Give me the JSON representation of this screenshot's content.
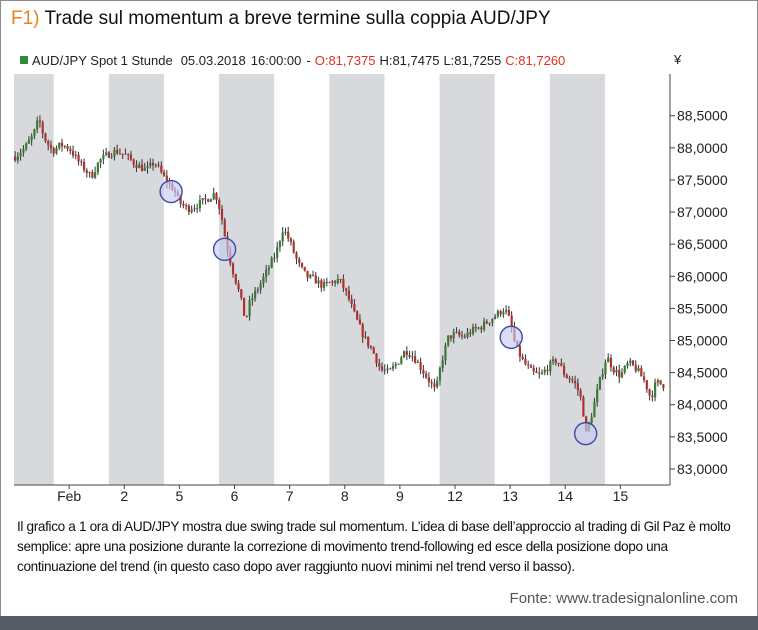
{
  "figure": {
    "number": "F1)",
    "title": "Trade sul momentum a breve termine sulla coppia AUD/JPY",
    "caption": "Il grafico a 1 ora di AUD/JPY mostra due swing trade sul momentum. L’idea di base dell’approccio al trading di Gil Paz è molto semplice: apre una posizione durante la correzione di movimento trend-following ed esce della posizione dopo una continuazione del trend (in questo caso dopo aver raggiunto nuovi minimi nel trend verso il basso).",
    "source": "Fonte: www.tradesignalonline.com"
  },
  "colors": {
    "shade": "#d7d9dd",
    "up": "#3b7a36",
    "down": "#b0302f",
    "wick": "#333333",
    "marker_fill": "#c7cbef",
    "marker_stroke": "#3f4aa8",
    "ohlc_open_close": "#e03020",
    "legend_square": "#2e8b3a",
    "bottom_bar": "#555c66"
  },
  "chart_data": {
    "type": "candlestick",
    "legend": {
      "symbol": "AUD/JPY Spot 1 Stunde",
      "date": "05.03.2018",
      "time": "16:00:00",
      "separator": "-",
      "open_label": "O:",
      "open": "81,7375",
      "high_label": "H:",
      "high": "81,7475",
      "low_label": "L:",
      "low": "81,7255",
      "close_label": "C:",
      "close": "81,7260"
    },
    "currency": "¥",
    "y_ticks": [
      "88,5000",
      "88,0000",
      "87,5000",
      "87,0000",
      "86,5000",
      "86,0000",
      "85,5000",
      "85,0000",
      "84,5000",
      "84,0000",
      "83,5000",
      "83,0000"
    ],
    "y_tick_values": [
      88.5,
      88.0,
      87.5,
      87.0,
      86.5,
      86.0,
      85.5,
      85.0,
      84.5,
      84.0,
      83.5,
      83.0
    ],
    "ylim": [
      82.75,
      89.15
    ],
    "x_ticks": [
      "Feb",
      "2",
      "5",
      "6",
      "7",
      "8",
      "9",
      "12",
      "13",
      "14",
      "15"
    ],
    "x_tick_days": [
      1,
      2,
      3,
      4,
      5,
      6,
      7,
      8,
      9,
      10,
      11
    ],
    "xlim": [
      0.0,
      11.9
    ],
    "shaded_day_spans": [
      [
        0.0,
        0.72
      ],
      [
        1.72,
        2.72
      ],
      [
        3.72,
        4.72
      ],
      [
        5.72,
        6.72
      ],
      [
        7.72,
        8.72
      ],
      [
        9.72,
        10.72
      ]
    ],
    "path_points": [
      [
        0.0,
        87.85
      ],
      [
        0.2,
        88.0
      ],
      [
        0.35,
        88.2
      ],
      [
        0.45,
        88.45
      ],
      [
        0.55,
        88.15
      ],
      [
        0.7,
        87.95
      ],
      [
        0.85,
        88.05
      ],
      [
        1.0,
        88.0
      ],
      [
        1.2,
        87.75
      ],
      [
        1.4,
        87.55
      ],
      [
        1.55,
        87.8
      ],
      [
        1.7,
        87.9
      ],
      [
        1.85,
        87.95
      ],
      [
        2.0,
        87.9
      ],
      [
        2.2,
        87.75
      ],
      [
        2.4,
        87.65
      ],
      [
        2.55,
        87.78
      ],
      [
        2.75,
        87.5
      ],
      [
        2.9,
        87.35
      ],
      [
        3.0,
        87.15
      ],
      [
        3.15,
        87.05
      ],
      [
        3.3,
        87.1
      ],
      [
        3.5,
        87.2
      ],
      [
        3.65,
        87.3
      ],
      [
        3.75,
        87.0
      ],
      [
        3.85,
        86.5
      ],
      [
        3.95,
        86.15
      ],
      [
        4.1,
        85.7
      ],
      [
        4.2,
        85.3
      ],
      [
        4.28,
        85.6
      ],
      [
        4.45,
        85.85
      ],
      [
        4.6,
        86.1
      ],
      [
        4.75,
        86.35
      ],
      [
        4.88,
        86.75
      ],
      [
        5.0,
        86.55
      ],
      [
        5.15,
        86.2
      ],
      [
        5.3,
        86.0
      ],
      [
        5.45,
        85.95
      ],
      [
        5.6,
        85.85
      ],
      [
        5.75,
        85.9
      ],
      [
        5.9,
        85.95
      ],
      [
        6.05,
        85.7
      ],
      [
        6.2,
        85.35
      ],
      [
        6.35,
        85.05
      ],
      [
        6.5,
        84.85
      ],
      [
        6.65,
        84.55
      ],
      [
        6.8,
        84.5
      ],
      [
        6.95,
        84.65
      ],
      [
        7.1,
        84.85
      ],
      [
        7.25,
        84.75
      ],
      [
        7.4,
        84.55
      ],
      [
        7.55,
        84.35
      ],
      [
        7.65,
        84.2
      ],
      [
        7.75,
        84.65
      ],
      [
        7.88,
        85.05
      ],
      [
        8.0,
        85.1
      ],
      [
        8.15,
        85.05
      ],
      [
        8.3,
        85.15
      ],
      [
        8.45,
        85.2
      ],
      [
        8.6,
        85.3
      ],
      [
        8.75,
        85.4
      ],
      [
        8.9,
        85.5
      ],
      [
        9.0,
        85.3
      ],
      [
        9.1,
        84.9
      ],
      [
        9.25,
        84.65
      ],
      [
        9.4,
        84.5
      ],
      [
        9.55,
        84.45
      ],
      [
        9.7,
        84.6
      ],
      [
        9.85,
        84.7
      ],
      [
        10.0,
        84.45
      ],
      [
        10.1,
        84.4
      ],
      [
        10.2,
        84.3
      ],
      [
        10.3,
        84.05
      ],
      [
        10.38,
        83.55
      ],
      [
        10.48,
        83.85
      ],
      [
        10.62,
        84.35
      ],
      [
        10.75,
        84.75
      ],
      [
        10.88,
        84.55
      ],
      [
        11.0,
        84.45
      ],
      [
        11.15,
        84.65
      ],
      [
        11.3,
        84.55
      ],
      [
        11.45,
        84.35
      ],
      [
        11.55,
        84.1
      ],
      [
        11.65,
        84.35
      ],
      [
        11.8,
        84.3
      ]
    ],
    "markers": [
      {
        "day": 2.85,
        "price": 87.32
      },
      {
        "day": 3.82,
        "price": 86.42
      },
      {
        "day": 9.02,
        "price": 85.05
      },
      {
        "day": 10.37,
        "price": 83.55
      }
    ]
  }
}
